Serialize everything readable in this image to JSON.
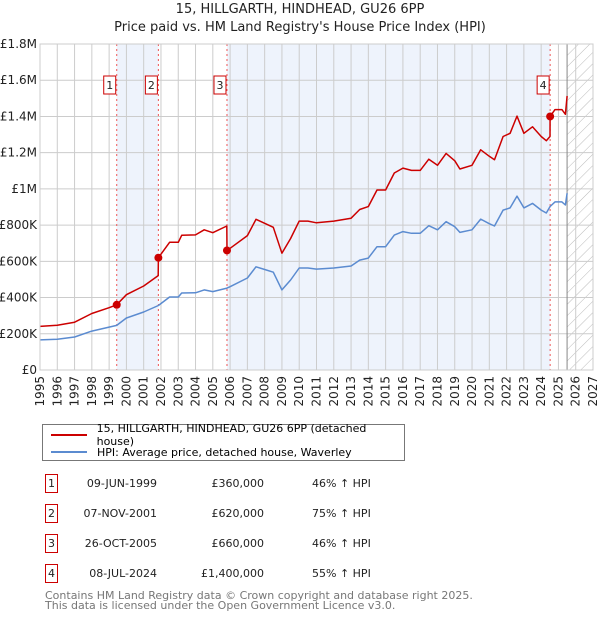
{
  "title": "15, HILLGARTH, HINDHEAD, GU26 6PP",
  "subtitle": "Price paid vs. HM Land Registry's House Price Index (HPI)",
  "colors": {
    "property": "#cc0000",
    "hpi": "#5b8bd0",
    "shade": "#eef3fc",
    "grid": "#cccccc"
  },
  "chart_data": {
    "type": "line",
    "title": "15, HILLGARTH, HINDHEAD, GU26 6PP",
    "xlim": [
      1995,
      2027
    ],
    "ylim": [
      0,
      1800000
    ],
    "grid": true,
    "legend_placement": "below",
    "x_ticks": [
      "1995",
      "1996",
      "1997",
      "1998",
      "1999",
      "2000",
      "2001",
      "2002",
      "2003",
      "2004",
      "2005",
      "2006",
      "2007",
      "2008",
      "2009",
      "2010",
      "2011",
      "2012",
      "2013",
      "2014",
      "2015",
      "2016",
      "2017",
      "2018",
      "2019",
      "2020",
      "2021",
      "2022",
      "2023",
      "2024",
      "2025",
      "2026",
      "2027"
    ],
    "y_ticks": [
      {
        "value": 0,
        "label": "£0"
      },
      {
        "value": 200000,
        "label": "£200K"
      },
      {
        "value": 400000,
        "label": "£400K"
      },
      {
        "value": 600000,
        "label": "£600K"
      },
      {
        "value": 800000,
        "label": "£800K"
      },
      {
        "value": 1000000,
        "label": "£1M"
      },
      {
        "value": 1200000,
        "label": "£1.2M"
      },
      {
        "value": 1400000,
        "label": "£1.4M"
      },
      {
        "value": 1600000,
        "label": "£1.6M"
      },
      {
        "value": 1800000,
        "label": "£1.8M"
      }
    ],
    "forecast_from": 2025.5,
    "series": [
      {
        "name": "15, HILLGARTH, HINDHEAD, GU26 6PP (detached house)",
        "x": [
          1995,
          1996,
          1997,
          1998,
          1999,
          1999.44,
          2000,
          2001,
          2001.84,
          2001.85,
          2002.5,
          2003,
          2003.2,
          2004,
          2004.5,
          2005,
          2005.81,
          2005.82,
          2006,
          2007,
          2007.5,
          2008,
          2008.5,
          2009,
          2009.5,
          2010,
          2010.5,
          2011,
          2012,
          2013,
          2013.5,
          2014,
          2014.5,
          2015,
          2015.5,
          2016,
          2016.5,
          2017,
          2017.5,
          2018,
          2018.5,
          2019,
          2019.3,
          2020,
          2020.5,
          2021,
          2021.3,
          2021.8,
          2022.2,
          2022.6,
          2023,
          2023.5,
          2024,
          2024.3,
          2024.51,
          2024.52,
          2024.8,
          2025.2,
          2025.4,
          2025.5
        ],
        "y": [
          241000,
          247000,
          264000,
          312000,
          344000,
          360000,
          416000,
          464000,
          521000,
          620000,
          705000,
          705000,
          744000,
          746000,
          774000,
          758000,
          795000,
          660000,
          672000,
          742000,
          832000,
          810000,
          788000,
          645000,
          726000,
          822000,
          822000,
          813000,
          822000,
          838000,
          886000,
          902000,
          994000,
          994000,
          1088000,
          1115000,
          1102000,
          1102000,
          1164000,
          1130000,
          1196000,
          1155000,
          1110000,
          1130000,
          1216000,
          1180000,
          1161000,
          1289000,
          1307000,
          1402000,
          1307000,
          1343000,
          1289000,
          1266000,
          1289000,
          1400000,
          1438000,
          1438000,
          1412000,
          1513000
        ]
      },
      {
        "name": "HPI: Average price, detached house, Waverley",
        "x": [
          1995,
          1996,
          1997,
          1998,
          1999,
          1999.44,
          2000,
          2001,
          2001.85,
          2002.5,
          2003,
          2003.2,
          2004,
          2004.5,
          2005,
          2005.82,
          2006,
          2007,
          2007.5,
          2008,
          2008.5,
          2009,
          2009.5,
          2010,
          2010.5,
          2011,
          2012,
          2013,
          2013.5,
          2014,
          2014.5,
          2015,
          2015.5,
          2016,
          2016.5,
          2017,
          2017.5,
          2018,
          2018.5,
          2019,
          2019.3,
          2020,
          2020.5,
          2021,
          2021.3,
          2021.8,
          2022.2,
          2022.6,
          2023,
          2023.5,
          2024,
          2024.3,
          2024.52,
          2024.8,
          2025.2,
          2025.4,
          2025.5
        ],
        "y": [
          166000,
          170000,
          182000,
          215000,
          237000,
          246000,
          287000,
          320000,
          356000,
          403000,
          403000,
          425000,
          426000,
          442000,
          433000,
          452000,
          460000,
          508000,
          570000,
          555000,
          540000,
          442000,
          497000,
          563000,
          563000,
          557000,
          563000,
          574000,
          607000,
          618000,
          681000,
          681000,
          745000,
          764000,
          755000,
          755000,
          797000,
          774000,
          819000,
          791000,
          760000,
          774000,
          833000,
          808000,
          795000,
          883000,
          895000,
          960000,
          895000,
          920000,
          883000,
          867000,
          903000,
          928000,
          928000,
          911000,
          976000
        ]
      }
    ],
    "sales": [
      {
        "label": "1",
        "x": 1999.44,
        "y": 360000
      },
      {
        "label": "2",
        "x": 2001.85,
        "y": 620000
      },
      {
        "label": "3",
        "x": 2005.82,
        "y": 660000
      },
      {
        "label": "4",
        "x": 2024.52,
        "y": 1400000
      }
    ]
  },
  "legend": [
    {
      "label": "15, HILLGARTH, HINDHEAD, GU26 6PP (detached house)"
    },
    {
      "label": "HPI: Average price, detached house, Waverley"
    }
  ],
  "transactions": [
    {
      "num": "1",
      "date": "09-JUN-1999",
      "price": "£360,000",
      "hpi": "46% ↑ HPI"
    },
    {
      "num": "2",
      "date": "07-NOV-2001",
      "price": "£620,000",
      "hpi": "75% ↑ HPI"
    },
    {
      "num": "3",
      "date": "26-OCT-2005",
      "price": "£660,000",
      "hpi": "46% ↑ HPI"
    },
    {
      "num": "4",
      "date": "08-JUL-2024",
      "price": "£1,400,000",
      "hpi": "55% ↑ HPI"
    }
  ],
  "footer": {
    "line1": "Contains HM Land Registry data © Crown copyright and database right 2025.",
    "line2": "This data is licensed under the Open Government Licence v3.0."
  }
}
